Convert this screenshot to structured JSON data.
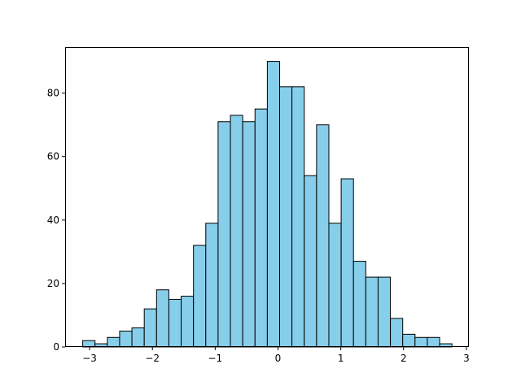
{
  "chart_data": {
    "type": "bar",
    "title": "",
    "xlabel": "",
    "ylabel": "",
    "xlim": [
      -3.39,
      3.04
    ],
    "ylim": [
      0,
      94.5
    ],
    "bin_start": -3.11,
    "bin_width": 0.196,
    "values": [
      2,
      1,
      3,
      5,
      6,
      12,
      18,
      15,
      16,
      32,
      39,
      71,
      73,
      71,
      75,
      90,
      82,
      82,
      54,
      70,
      39,
      53,
      27,
      22,
      22,
      9,
      4,
      3,
      3,
      1
    ],
    "x_ticks": [
      -3,
      -2,
      -1,
      0,
      1,
      2,
      3
    ],
    "x_tick_labels": [
      "−3",
      "−2",
      "−1",
      "0",
      "1",
      "2",
      "3"
    ],
    "y_ticks": [
      0,
      20,
      40,
      60,
      80
    ],
    "y_tick_labels": [
      "0",
      "20",
      "40",
      "60",
      "80"
    ],
    "bar_color": "#87ceeb",
    "edge_color": "#000000",
    "grid": false
  }
}
